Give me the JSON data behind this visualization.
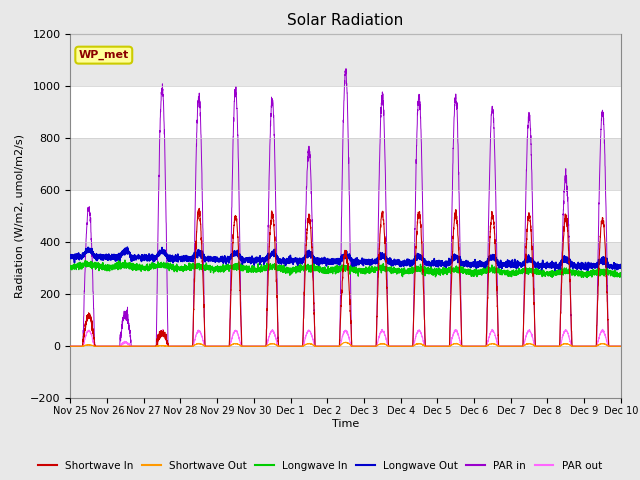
{
  "title": "Solar Radiation",
  "xlabel": "Time",
  "ylabel": "Radiation (W/m2, umol/m2/s)",
  "ylim": [
    -200,
    1200
  ],
  "yticks": [
    -200,
    0,
    200,
    400,
    600,
    800,
    1000,
    1200
  ],
  "fig_facecolor": "#e8e8e8",
  "plot_facecolor": "#ffffff",
  "station_label": "WP_met",
  "legend_entries": [
    "Shortwave In",
    "Shortwave Out",
    "Longwave In",
    "Longwave Out",
    "PAR in",
    "PAR out"
  ],
  "line_colors": [
    "#cc0000",
    "#ff9900",
    "#00cc00",
    "#0000cc",
    "#9900cc",
    "#ff66ff"
  ],
  "n_days": 15,
  "points_per_day": 288,
  "shortwave_in_peaks": [
    120,
    0,
    50,
    520,
    500,
    510,
    500,
    360,
    510,
    510,
    510,
    505,
    500,
    495,
    490
  ],
  "shortwave_out_peaks": [
    5,
    0,
    2,
    10,
    10,
    10,
    10,
    15,
    10,
    10,
    10,
    10,
    10,
    10,
    10
  ],
  "par_in_peaks": [
    535,
    130,
    990,
    960,
    990,
    945,
    750,
    1050,
    960,
    960,
    955,
    920,
    890,
    650,
    905
  ],
  "par_out_peaks": [
    60,
    15,
    60,
    60,
    60,
    60,
    60,
    60,
    60,
    60,
    60,
    60,
    60,
    60,
    60
  ],
  "longwave_in_base": 310,
  "longwave_out_base": 345,
  "xticklabels": [
    "Nov 25",
    "Nov 26",
    "Nov 27",
    "Nov 28",
    "Nov 29",
    "Nov 30",
    "Dec 1",
    "Dec 2",
    "Dec 3",
    "Dec 4",
    "Dec 5",
    "Dec 6",
    "Dec 7",
    "Dec 8",
    "Dec 9",
    "Dec 10"
  ],
  "band_color": "#e8e8e8",
  "grid_color": "#cccccc"
}
